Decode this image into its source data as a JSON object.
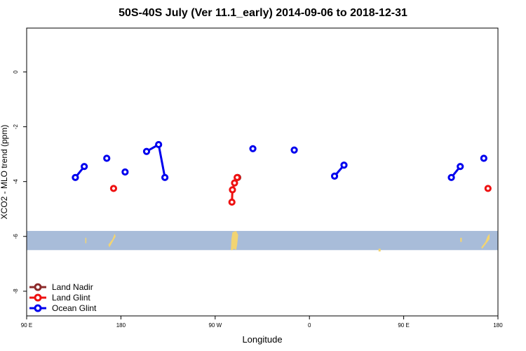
{
  "title": "50S-40S July (Ver 11.1_early)   2014-09-06 to 2018-12-31",
  "chart_data": {
    "type": "line",
    "xlabel": "Longitude",
    "ylabel": "XCO2 - MLO trend (ppm)",
    "xlim": [
      90,
      540
    ],
    "ylim": [
      -8.9,
      1.6
    ],
    "x_ticks": [
      90,
      180,
      270,
      360,
      450,
      540
    ],
    "x_tick_labels": [
      "90 E",
      "180",
      "90 W",
      "0",
      "90 E",
      "180"
    ],
    "y_ticks": [
      0,
      -2,
      -4,
      -6,
      -8
    ],
    "y_tick_labels": [
      "0",
      "-2",
      "-4",
      "-6",
      "-8"
    ],
    "grid": false,
    "legend_position": "bottom-left",
    "series": [
      {
        "name": "Land Nadir",
        "color": "#8b2a2a",
        "segments": [
          [
            [
              291.5,
              -3.85
            ]
          ]
        ]
      },
      {
        "name": "Land Glint",
        "color": "#ee1111",
        "segments": [
          [
            [
              286,
              -4.75
            ],
            [
              286.5,
              -4.3
            ],
            [
              288.5,
              -4.05
            ],
            [
              291,
              -3.85
            ]
          ],
          [
            [
              173,
              -4.25
            ]
          ],
          [
            [
              530.5,
              -4.25
            ]
          ]
        ]
      },
      {
        "name": "Ocean Glint",
        "color": "#0000ee",
        "segments": [
          [
            [
              136.5,
              -3.85
            ],
            [
              145,
              -3.45
            ]
          ],
          [
            [
              166.5,
              -3.15
            ]
          ],
          [
            [
              184,
              -3.65
            ]
          ],
          [
            [
              204.5,
              -2.9
            ],
            [
              216,
              -2.65
            ],
            [
              222,
              -3.85
            ]
          ],
          [
            [
              306,
              -2.8
            ]
          ],
          [
            [
              345.5,
              -2.85
            ]
          ],
          [
            [
              384,
              -3.8
            ],
            [
              393,
              -3.4
            ]
          ],
          [
            [
              495.5,
              -3.85
            ],
            [
              504,
              -3.45
            ]
          ],
          [
            [
              526.5,
              -3.15
            ]
          ]
        ]
      }
    ],
    "map_band": {
      "ylim": [
        -6.5,
        -5.8
      ],
      "ocean_color": "#a8bcd9",
      "land_color": "#f2d472"
    }
  }
}
